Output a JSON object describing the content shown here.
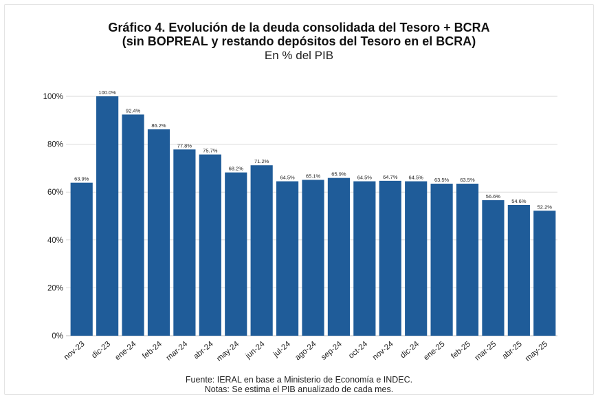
{
  "title_line1": "Gráfico 4. Evolución de la deuda consolidada del Tesoro + BCRA",
  "title_line2": "(sin BOPREAL y restando depósitos del Tesoro en el BCRA)",
  "subtitle": "En % del PIB",
  "source": "Fuente: IERAL en base a Ministerio de Economía e INDEC.",
  "note": "Notas: Se estima el PIB anualizado de cada mes.",
  "colors": {
    "bar": "#1f5c99",
    "grid": "#d9d9d9",
    "axis": "#bfbfbf"
  },
  "chart_data": {
    "type": "bar",
    "title": "Gráfico 4. Evolución de la deuda consolidada del Tesoro + BCRA (sin BOPREAL y restando depósitos del Tesoro en el BCRA)",
    "subtitle": "En % del PIB",
    "xlabel": "",
    "ylabel": "",
    "ylim": [
      0,
      100
    ],
    "yticks": [
      0,
      20,
      40,
      60,
      80,
      100
    ],
    "ytick_labels": [
      "0%",
      "20%",
      "40%",
      "60%",
      "80%",
      "100%"
    ],
    "grid": true,
    "categories": [
      "nov-23",
      "dic-23",
      "ene-24",
      "feb-24",
      "mar-24",
      "abr-24",
      "may-24",
      "jun-24",
      "jul-24",
      "ago-24",
      "sep-24",
      "oct-24",
      "nov-24",
      "dic-24",
      "ene-25",
      "feb-25",
      "mar-25",
      "abr-25",
      "may-25"
    ],
    "values": [
      63.9,
      100.0,
      92.4,
      86.2,
      77.8,
      75.7,
      68.2,
      71.2,
      64.5,
      65.1,
      65.9,
      64.5,
      64.7,
      64.5,
      63.5,
      63.5,
      56.6,
      54.6,
      52.2
    ],
    "data_labels": [
      "63.9%",
      "100.0%",
      "92.4%",
      "86.2%",
      "77.8%",
      "75.7%",
      "68.2%",
      "71.2%",
      "64.5%",
      "65.1%",
      "65.9%",
      "64.5%",
      "64.7%",
      "64.5%",
      "63.5%",
      "63.5%",
      "56.6%",
      "54.6%",
      "52.2%"
    ]
  }
}
